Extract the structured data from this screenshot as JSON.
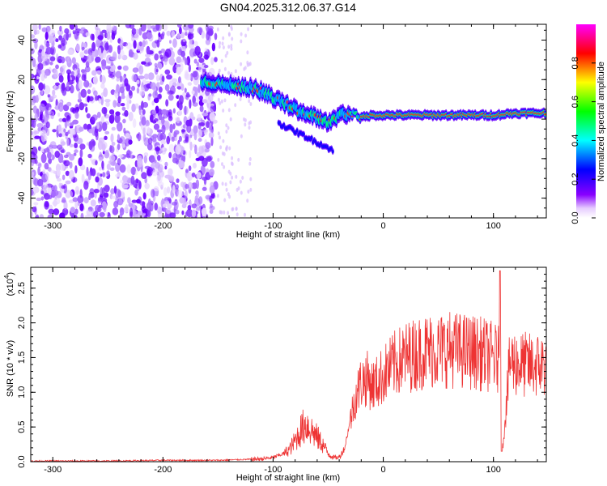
{
  "chart_data": [
    {
      "type": "heatmap",
      "title": "GN04.2025.312.06.37.G14",
      "xlabel": "Height of straight line (km)",
      "ylabel": "Frequency (Hz)",
      "xlim": [
        -320,
        148
      ],
      "ylim": [
        -50,
        48
      ],
      "x_ticks": [
        "-300",
        "-200",
        "-100",
        "0",
        "100"
      ],
      "y_ticks": [
        "40",
        "20",
        "0",
        "-20",
        "-40"
      ],
      "colorbar": {
        "label": "Normalized spectral amplitude",
        "range": [
          0.0,
          1.0
        ],
        "ticks": [
          "0.0",
          "0.2",
          "0.4",
          "0.6",
          "0.8"
        ],
        "colors": [
          "#ffffff",
          "#8800ff",
          "#0000ff",
          "#00ffff",
          "#00ff00",
          "#ffff00",
          "#ff0000",
          "#ff00ff"
        ]
      },
      "ridge": {
        "x": [
          -165,
          -150,
          -135,
          -120,
          -110,
          -100,
          -90,
          -80,
          -70,
          -60,
          -50,
          -40,
          -30,
          -20,
          -10,
          0,
          20,
          50,
          80,
          100,
          120,
          148
        ],
        "y": [
          19,
          18,
          17,
          16,
          14,
          11,
          8,
          5,
          3,
          1,
          -2,
          2,
          3,
          1,
          2,
          2,
          2,
          2,
          2,
          2,
          3,
          3
        ]
      },
      "noise_region_x": [
        -320,
        -152
      ]
    },
    {
      "type": "line",
      "xlabel": "Height of straight line (km)",
      "ylabel": "SNR (10 * v/v)",
      "y_scale_label": "(x10",
      "y_scale_exp": "4",
      "xlim": [
        -320,
        148
      ],
      "ylim": [
        0,
        2.8
      ],
      "x_ticks": [
        "-300",
        "-200",
        "-100",
        "0",
        "100"
      ],
      "y_ticks": [
        "0.0",
        "0.5",
        "1.0",
        "1.5",
        "2.0",
        "2.5"
      ],
      "color": "#ee3333",
      "x": [
        -320,
        -300,
        -250,
        -200,
        -150,
        -130,
        -110,
        -100,
        -90,
        -85,
        -80,
        -75,
        -70,
        -65,
        -60,
        -55,
        -50,
        -45,
        -40,
        -35,
        -30,
        -25,
        -20,
        -15,
        -10,
        -5,
        0,
        10,
        20,
        30,
        40,
        50,
        60,
        70,
        80,
        90,
        100,
        105,
        106,
        108,
        115,
        125,
        135,
        148
      ],
      "y": [
        0.01,
        0.01,
        0.01,
        0.02,
        0.02,
        0.03,
        0.04,
        0.06,
        0.12,
        0.18,
        0.3,
        0.45,
        0.55,
        0.45,
        0.35,
        0.25,
        0.12,
        0.06,
        0.06,
        0.2,
        0.6,
        0.95,
        1.15,
        1.2,
        1.1,
        1.15,
        1.25,
        1.4,
        1.5,
        1.55,
        1.6,
        1.6,
        1.62,
        1.6,
        1.58,
        1.55,
        1.5,
        1.45,
        2.75,
        0.15,
        1.45,
        1.4,
        1.38,
        1.4
      ]
    }
  ]
}
